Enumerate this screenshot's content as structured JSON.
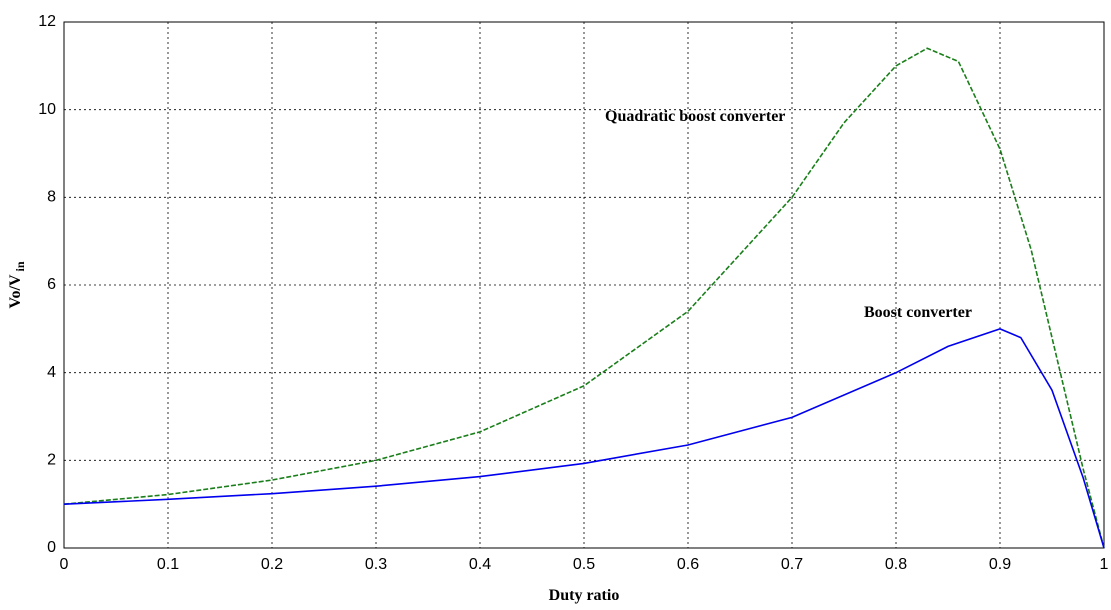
{
  "chart_data": {
    "type": "line",
    "xlabel": "Duty ratio",
    "ylabel": "Vo/V",
    "ylabel_subscript": "in",
    "xlim": [
      0,
      1
    ],
    "xticks": [
      0,
      0.1,
      0.2,
      0.3,
      0.4,
      0.5,
      0.6,
      0.7,
      0.8,
      0.9,
      1
    ],
    "ylim": [
      0,
      12
    ],
    "yticks": [
      0,
      2,
      4,
      6,
      8,
      10,
      12
    ],
    "grid": true,
    "annotations": [
      "Quadratic boost converter",
      "Boost converter"
    ],
    "series": [
      {
        "name": "Quadratic boost converter",
        "color": "#1a7f1a",
        "dash": true,
        "x": [
          0,
          0.1,
          0.2,
          0.3,
          0.4,
          0.5,
          0.6,
          0.7,
          0.75,
          0.8,
          0.83,
          0.86,
          0.9,
          0.93,
          0.96,
          0.98,
          1
        ],
        "values": [
          1,
          1.22,
          1.55,
          2.0,
          2.65,
          3.7,
          5.4,
          8.0,
          9.7,
          11.0,
          11.4,
          11.1,
          9.1,
          6.8,
          3.8,
          1.8,
          0
        ]
      },
      {
        "name": "Boost converter",
        "color": "#0000ee",
        "dash": false,
        "x": [
          0,
          0.1,
          0.2,
          0.3,
          0.4,
          0.5,
          0.6,
          0.7,
          0.8,
          0.85,
          0.9,
          0.92,
          0.95,
          0.98,
          1
        ],
        "values": [
          1,
          1.11,
          1.24,
          1.41,
          1.63,
          1.93,
          2.35,
          2.98,
          4.0,
          4.6,
          5.0,
          4.8,
          3.6,
          1.6,
          0
        ]
      }
    ]
  }
}
